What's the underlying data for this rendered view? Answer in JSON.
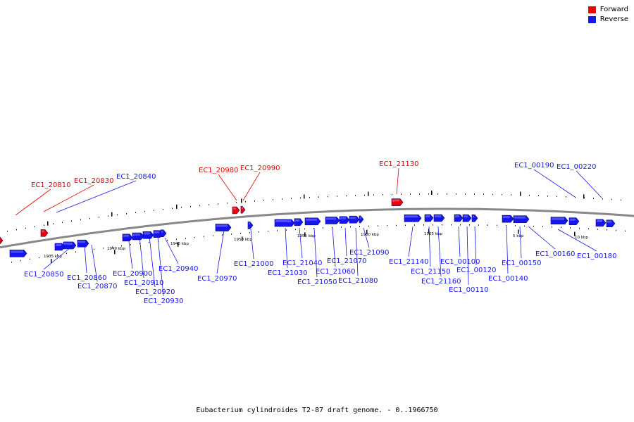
{
  "legend": [
    {
      "label": "Forward",
      "color": "#ee0000"
    },
    {
      "label": "Reverse",
      "color": "#1515f0"
    }
  ],
  "caption": "Eubacterium cylindroides T2-87 draft genome. - 0..1966750",
  "colors": {
    "forward": "#ee0000",
    "reverse": "#1515f0",
    "backbone": "#888888"
  },
  "ticks": [
    "1935 kbp",
    "1940 kbp",
    "1945 kbp",
    "1950 kbp",
    "1955 kbp",
    "1960 kbp",
    "1965 kbp",
    "5 kbp",
    "10 kbp"
  ],
  "genes": [
    {
      "id": "EC1_20810",
      "strand": "forward"
    },
    {
      "id": "EC1_20830",
      "strand": "forward"
    },
    {
      "id": "EC1_20840",
      "strand": "reverse"
    },
    {
      "id": "EC1_20850",
      "strand": "reverse"
    },
    {
      "id": "EC1_20860",
      "strand": "reverse"
    },
    {
      "id": "EC1_20870",
      "strand": "reverse"
    },
    {
      "id": "EC1_20900",
      "strand": "reverse"
    },
    {
      "id": "EC1_20910",
      "strand": "reverse"
    },
    {
      "id": "EC1_20920",
      "strand": "reverse"
    },
    {
      "id": "EC1_20930",
      "strand": "reverse"
    },
    {
      "id": "EC1_20940",
      "strand": "reverse"
    },
    {
      "id": "EC1_20970",
      "strand": "reverse"
    },
    {
      "id": "EC1_20980",
      "strand": "forward"
    },
    {
      "id": "EC1_20990",
      "strand": "forward"
    },
    {
      "id": "EC1_21000",
      "strand": "reverse"
    },
    {
      "id": "EC1_21030",
      "strand": "reverse"
    },
    {
      "id": "EC1_21040",
      "strand": "reverse"
    },
    {
      "id": "EC1_21050",
      "strand": "reverse"
    },
    {
      "id": "EC1_21060",
      "strand": "reverse"
    },
    {
      "id": "EC1_21070",
      "strand": "reverse"
    },
    {
      "id": "EC1_21080",
      "strand": "reverse"
    },
    {
      "id": "EC1_21090",
      "strand": "reverse"
    },
    {
      "id": "EC1_21130",
      "strand": "forward"
    },
    {
      "id": "EC1_21140",
      "strand": "reverse"
    },
    {
      "id": "EC1_21150",
      "strand": "reverse"
    },
    {
      "id": "EC1_21160",
      "strand": "reverse"
    },
    {
      "id": "EC1_00100",
      "strand": "reverse"
    },
    {
      "id": "EC1_00110",
      "strand": "reverse"
    },
    {
      "id": "EC1_00120",
      "strand": "reverse"
    },
    {
      "id": "EC1_00140",
      "strand": "reverse"
    },
    {
      "id": "EC1_00150",
      "strand": "reverse"
    },
    {
      "id": "EC1_00160",
      "strand": "reverse"
    },
    {
      "id": "EC1_00180",
      "strand": "reverse"
    },
    {
      "id": "EC1_00190",
      "strand": "reverse"
    },
    {
      "id": "EC1_00220",
      "strand": "reverse"
    }
  ]
}
